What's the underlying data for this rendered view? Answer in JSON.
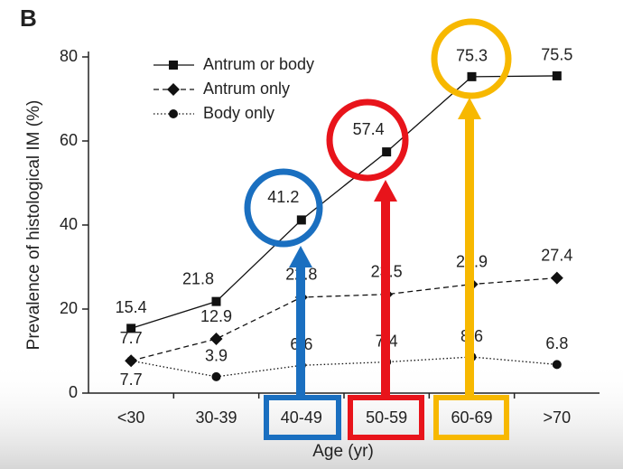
{
  "chart_data": {
    "type": "line",
    "panel": "B",
    "ylabel": "Prevalence of histological IM (%)",
    "xlabel": "Age (yr)",
    "categories": [
      "<30",
      "30-39",
      "40-49",
      "50-59",
      "60-69",
      ">70"
    ],
    "ylim": [
      0,
      80
    ],
    "yticks": [
      0,
      20,
      40,
      60,
      80
    ],
    "legend": "upper left",
    "series": [
      {
        "name": "Antrum or body",
        "color": "#111111",
        "style": "solid",
        "marker": "square",
        "values": [
          15.4,
          21.8,
          41.2,
          57.4,
          75.3,
          75.5
        ]
      },
      {
        "name": "Antrum only",
        "color": "#111111",
        "style": "dashed",
        "marker": "diamond",
        "values": [
          7.7,
          12.9,
          22.8,
          23.5,
          25.9,
          27.4
        ]
      },
      {
        "name": "Body only",
        "color": "#111111",
        "style": "dotted",
        "marker": "circle",
        "values": [
          7.7,
          3.9,
          6.6,
          7.4,
          8.6,
          6.8
        ]
      }
    ]
  }
}
